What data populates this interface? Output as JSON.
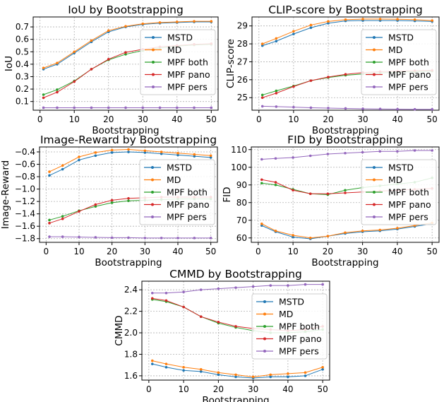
{
  "colors": {
    "MSTD": "#1f77b4",
    "MD": "#ff7f0e",
    "MPF both": "#2ca02c",
    "MPF pano": "#d62728",
    "MPF pers": "#9467bd"
  },
  "chart_data": [
    {
      "type": "line",
      "title": "IoU by Bootstrapping",
      "xlabel": "Bootstrapping",
      "ylabel": "IoU",
      "xlim": [
        -2,
        52
      ],
      "ylim": [
        0.03,
        0.78
      ],
      "xticks": [
        0,
        10,
        20,
        30,
        40,
        50
      ],
      "yticks": [
        0.1,
        0.2,
        0.3,
        0.4,
        0.5,
        0.6,
        0.7
      ],
      "ytick_labels": [
        "0.1",
        "0.2",
        "0.3",
        "0.4",
        "0.5",
        "0.6",
        "0.7"
      ],
      "grid": true,
      "legend": "center-right",
      "x": [
        1,
        5,
        10,
        15,
        20,
        25,
        30,
        35,
        40,
        45,
        50
      ],
      "series": [
        {
          "name": "MSTD",
          "values": [
            0.36,
            0.4,
            0.49,
            0.58,
            0.66,
            0.7,
            0.72,
            0.73,
            0.735,
            0.74,
            0.74
          ]
        },
        {
          "name": "MD",
          "values": [
            0.37,
            0.41,
            0.5,
            0.59,
            0.67,
            0.705,
            0.725,
            0.735,
            0.74,
            0.745,
            0.745
          ]
        },
        {
          "name": "MPF both",
          "values": [
            0.155,
            0.195,
            0.265,
            0.36,
            0.435,
            0.48,
            0.51,
            0.53,
            0.545,
            0.555,
            0.56
          ]
        },
        {
          "name": "MPF pano",
          "values": [
            0.13,
            0.175,
            0.26,
            0.36,
            0.44,
            0.495,
            0.52,
            0.54,
            0.55,
            0.56,
            0.565
          ]
        },
        {
          "name": "MPF pers",
          "values": [
            0.05,
            0.05,
            0.05,
            0.05,
            0.05,
            0.05,
            0.05,
            0.05,
            0.05,
            0.05,
            0.05
          ]
        }
      ]
    },
    {
      "type": "line",
      "title": "CLIP-score by Bootstrapping",
      "xlabel": "Bootstrapping",
      "ylabel": "CLIP-score",
      "xlim": [
        -2,
        52
      ],
      "ylim": [
        24.3,
        29.5
      ],
      "xticks": [
        0,
        10,
        20,
        30,
        40,
        50
      ],
      "yticks": [
        25,
        26,
        27,
        28,
        29
      ],
      "ytick_labels": [
        "25",
        "26",
        "27",
        "28",
        "29"
      ],
      "grid": true,
      "legend": "center-right",
      "x": [
        1,
        5,
        10,
        15,
        20,
        25,
        30,
        35,
        40,
        45,
        50
      ],
      "series": [
        {
          "name": "MSTD",
          "values": [
            27.9,
            28.15,
            28.55,
            28.9,
            29.15,
            29.28,
            29.3,
            29.3,
            29.3,
            29.28,
            29.25
          ]
        },
        {
          "name": "MD",
          "values": [
            28.0,
            28.3,
            28.7,
            29.05,
            29.25,
            29.35,
            29.38,
            29.38,
            29.37,
            29.35,
            29.3
          ]
        },
        {
          "name": "MPF both",
          "values": [
            25.15,
            25.38,
            25.65,
            25.95,
            26.12,
            26.25,
            26.32,
            26.38,
            26.42,
            26.45,
            26.48
          ]
        },
        {
          "name": "MPF pano",
          "values": [
            25.0,
            25.25,
            25.62,
            25.95,
            26.15,
            26.3,
            26.4,
            26.45,
            26.48,
            26.5,
            26.52
          ]
        },
        {
          "name": "MPF pers",
          "values": [
            24.52,
            24.5,
            24.47,
            24.44,
            24.42,
            24.4,
            24.38,
            24.37,
            24.36,
            24.35,
            24.35
          ]
        }
      ]
    },
    {
      "type": "line",
      "title": "Image-Reward by Bootstrapping",
      "xlabel": "Bootstrapping",
      "ylabel": "Image-Reward",
      "xlim": [
        -2,
        52
      ],
      "ylim": [
        -1.86,
        -0.32
      ],
      "xticks": [
        0,
        10,
        20,
        30,
        40,
        50
      ],
      "yticks": [
        -1.8,
        -1.6,
        -1.4,
        -1.2,
        -1.0,
        -0.8,
        -0.6,
        -0.4
      ],
      "ytick_labels": [
        "−1.8",
        "−1.6",
        "−1.4",
        "−1.2",
        "−1.0",
        "−0.8",
        "−0.6",
        "−0.4"
      ],
      "grid": true,
      "legend": "center-right",
      "x": [
        1,
        5,
        10,
        15,
        20,
        25,
        30,
        35,
        40,
        45,
        50
      ],
      "series": [
        {
          "name": "MSTD",
          "values": [
            -0.78,
            -0.68,
            -0.53,
            -0.46,
            -0.41,
            -0.4,
            -0.41,
            -0.43,
            -0.45,
            -0.47,
            -0.49
          ]
        },
        {
          "name": "MD",
          "values": [
            -0.72,
            -0.62,
            -0.48,
            -0.41,
            -0.37,
            -0.36,
            -0.38,
            -0.4,
            -0.42,
            -0.44,
            -0.46
          ]
        },
        {
          "name": "MPF both",
          "values": [
            -1.5,
            -1.44,
            -1.35,
            -1.28,
            -1.22,
            -1.19,
            -1.18,
            -1.17,
            -1.16,
            -1.16,
            -1.16
          ]
        },
        {
          "name": "MPF pano",
          "values": [
            -1.55,
            -1.48,
            -1.36,
            -1.25,
            -1.18,
            -1.15,
            -1.14,
            -1.13,
            -1.13,
            -1.13,
            -1.13
          ]
        },
        {
          "name": "MPF pers",
          "values": [
            -1.77,
            -1.77,
            -1.775,
            -1.78,
            -1.785,
            -1.785,
            -1.79,
            -1.79,
            -1.79,
            -1.79,
            -1.79
          ]
        }
      ]
    },
    {
      "type": "line",
      "title": "FID by Bootstrapping",
      "xlabel": "Bootstrapping",
      "ylabel": "FID",
      "xlim": [
        -2,
        52
      ],
      "ylim": [
        57.5,
        111.5
      ],
      "xticks": [
        0,
        10,
        20,
        30,
        40,
        50
      ],
      "yticks": [
        60,
        70,
        80,
        90,
        100,
        110
      ],
      "ytick_labels": [
        "60",
        "70",
        "80",
        "90",
        "100",
        "110"
      ],
      "grid": true,
      "legend": "center-right",
      "x": [
        1,
        5,
        10,
        15,
        20,
        25,
        30,
        35,
        40,
        45,
        50
      ],
      "series": [
        {
          "name": "MSTD",
          "values": [
            67,
            63.5,
            60.5,
            59.5,
            61,
            62.5,
            63.5,
            64,
            65,
            66.5,
            68
          ]
        },
        {
          "name": "MD",
          "values": [
            68,
            64,
            61.5,
            60,
            61,
            63,
            64,
            64.5,
            65.5,
            67,
            68.5
          ]
        },
        {
          "name": "MPF both",
          "values": [
            91,
            90,
            87.5,
            85,
            84.5,
            87,
            88.5,
            89.5,
            90.5,
            91.5,
            94
          ]
        },
        {
          "name": "MPF pano",
          "values": [
            93,
            91.5,
            87,
            85,
            85,
            85.5,
            86,
            86.5,
            87,
            87.5,
            88
          ]
        },
        {
          "name": "MPF pers",
          "values": [
            104.5,
            105,
            105.5,
            106.5,
            107.5,
            108,
            108.5,
            109,
            109,
            109.5,
            109.5
          ]
        }
      ]
    },
    {
      "type": "line",
      "title": "CMMD by Bootstrapping",
      "xlabel": "Bootstrapping",
      "ylabel": "CMMD",
      "xlim": [
        -2,
        52
      ],
      "ylim": [
        1.56,
        2.48
      ],
      "xticks": [
        0,
        10,
        20,
        30,
        40,
        50
      ],
      "yticks": [
        1.6,
        1.8,
        2.0,
        2.2,
        2.4
      ],
      "ytick_labels": [
        "1.6",
        "1.8",
        "2.0",
        "2.2",
        "2.4"
      ],
      "grid": true,
      "legend": "center-right",
      "x": [
        1,
        5,
        10,
        15,
        20,
        25,
        30,
        35,
        40,
        45,
        50
      ],
      "series": [
        {
          "name": "MSTD",
          "values": [
            1.71,
            1.68,
            1.65,
            1.64,
            1.61,
            1.59,
            1.58,
            1.59,
            1.59,
            1.6,
            1.66
          ]
        },
        {
          "name": "MD",
          "values": [
            1.74,
            1.71,
            1.68,
            1.66,
            1.63,
            1.61,
            1.59,
            1.61,
            1.62,
            1.63,
            1.68
          ]
        },
        {
          "name": "MPF both",
          "values": [
            2.31,
            2.29,
            2.24,
            2.15,
            2.09,
            2.05,
            2.02,
            2.0,
            2.0,
            2.01,
            2.03
          ]
        },
        {
          "name": "MPF pano",
          "values": [
            2.32,
            2.3,
            2.24,
            2.15,
            2.1,
            2.06,
            2.04,
            2.03,
            2.02,
            2.03,
            2.06
          ]
        },
        {
          "name": "MPF pers",
          "values": [
            2.37,
            2.37,
            2.38,
            2.4,
            2.41,
            2.42,
            2.43,
            2.44,
            2.44,
            2.45,
            2.45
          ]
        }
      ]
    }
  ]
}
